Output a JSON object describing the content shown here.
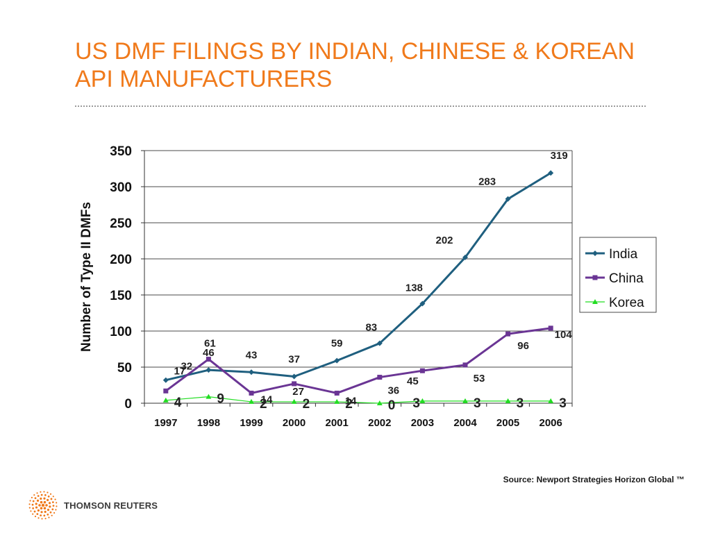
{
  "slide": {
    "title_line1": "US DMF FILINGS BY INDIAN, CHINESE & KOREAN",
    "title_line2": "API MANUFACTURERS",
    "source": "Source: Newport Strategies Horizon Global ™",
    "brand": "THOMSON REUTERS"
  },
  "chart_data": {
    "type": "line",
    "title": "",
    "xlabel": "",
    "ylabel": "Number of Type II DMFs",
    "ylim": [
      0,
      350
    ],
    "yticks": [
      0,
      50,
      100,
      150,
      200,
      250,
      300,
      350
    ],
    "categories": [
      "1997",
      "1998",
      "1999",
      "2000",
      "2001",
      "2002",
      "2003",
      "2004",
      "2005",
      "2006"
    ],
    "grid": true,
    "legend": "right",
    "series": [
      {
        "name": "India",
        "color": "#1F5F7F",
        "marker": "diamond",
        "values": [
          32,
          46,
          43,
          37,
          59,
          83,
          138,
          202,
          283,
          319
        ],
        "labels": [
          "32",
          "46",
          "43",
          "37",
          "59",
          "83",
          "138",
          "202",
          "283",
          "319"
        ]
      },
      {
        "name": "China",
        "color": "#6A3594",
        "marker": "square",
        "values": [
          17,
          61,
          14,
          27,
          14,
          36,
          45,
          53,
          96,
          104
        ],
        "labels": [
          "17",
          "61",
          "14",
          "27",
          "14",
          "36",
          "45",
          "53",
          "96",
          "104"
        ]
      },
      {
        "name": "Korea",
        "color": "#22DD22",
        "marker": "triangle",
        "values": [
          4,
          9,
          2,
          2,
          2,
          0,
          3,
          3,
          3,
          3
        ],
        "labels": [
          "4",
          "9",
          "2",
          "2",
          "2",
          "0",
          "3",
          "3",
          "3",
          "3"
        ]
      }
    ]
  }
}
